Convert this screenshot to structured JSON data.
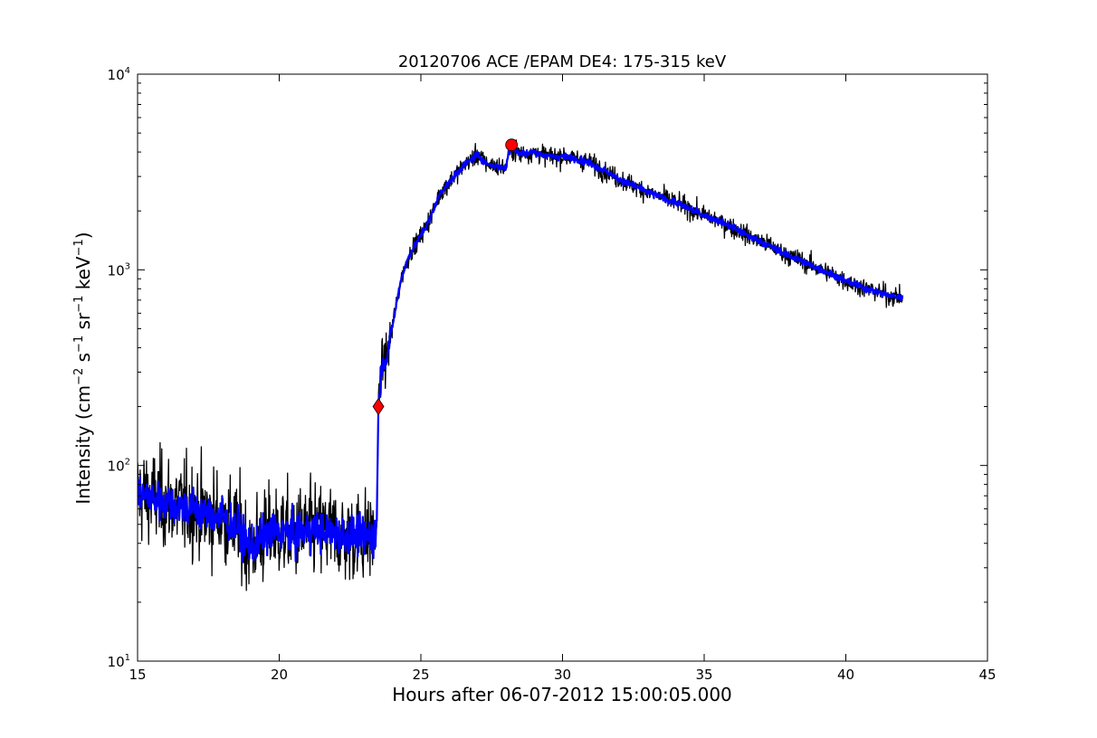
{
  "chart_data": {
    "type": "line",
    "title": "20120706 ACE /EPAM DE4: 175-315 keV",
    "xlabel": "Hours after 06-07-2012 15:00:05.000",
    "ylabel": {
      "prefix": "Intensity (cm",
      "sup1": "−2",
      "mid1": " s",
      "sup2": "−1",
      "mid2": " sr",
      "sup3": "−1",
      "mid3": " keV",
      "sup4": "−1",
      "suffix": ")"
    },
    "xlim": [
      15,
      45
    ],
    "ylim": [
      10,
      10000
    ],
    "yscale": "log",
    "grid": false,
    "x_ticks": [
      15,
      20,
      25,
      30,
      35,
      40,
      45
    ],
    "x_tick_labels": [
      "15",
      "20",
      "25",
      "30",
      "35",
      "40",
      "45"
    ],
    "y_ticks": [
      {
        "value": 10,
        "base": "10",
        "exp": "1"
      },
      {
        "value": 100,
        "base": "10",
        "exp": "2"
      },
      {
        "value": 1000,
        "base": "10",
        "exp": "3"
      },
      {
        "value": 10000,
        "base": "10",
        "exp": "4"
      }
    ],
    "series": [
      {
        "role": "raw",
        "color": "#000000",
        "x": [
          15.0,
          15.5,
          16.0,
          16.5,
          17.0,
          17.5,
          18.0,
          18.5,
          19.0,
          19.5,
          20.0,
          20.5,
          21.0,
          21.5,
          22.0,
          22.5,
          23.0,
          23.4,
          23.45,
          23.5,
          23.6,
          23.8,
          24.0,
          24.3,
          24.6,
          25.0,
          25.3,
          25.7,
          26.0,
          26.5,
          27.0,
          27.3,
          27.6,
          28.0,
          28.1,
          28.2,
          28.5,
          29.0,
          29.5,
          30.0,
          30.5,
          31.0,
          31.5,
          32.0,
          32.5,
          33.0,
          33.5,
          34.0,
          34.5,
          35.0,
          35.5,
          36.0,
          36.5,
          37.0,
          37.5,
          38.0,
          38.5,
          39.0,
          39.5,
          40.0,
          40.5,
          41.0,
          41.5,
          42.0
        ],
        "y": [
          72,
          68,
          66,
          62,
          60,
          56,
          54,
          48,
          38,
          44,
          46,
          44,
          47,
          46,
          45,
          44,
          43,
          44,
          60,
          200,
          310,
          360,
          520,
          900,
          1200,
          1500,
          1800,
          2500,
          2800,
          3400,
          3900,
          3500,
          3400,
          3300,
          4000,
          4200,
          3900,
          4000,
          3800,
          3800,
          3700,
          3500,
          3200,
          2900,
          2700,
          2500,
          2350,
          2200,
          2050,
          1900,
          1780,
          1650,
          1500,
          1400,
          1280,
          1180,
          1100,
          1020,
          950,
          880,
          820,
          780,
          740,
          720
        ]
      },
      {
        "role": "smoothed",
        "color": "#0000ff",
        "x": [
          15.0,
          15.5,
          16.0,
          16.5,
          17.0,
          17.5,
          18.0,
          18.5,
          19.0,
          19.5,
          20.0,
          20.5,
          21.0,
          21.5,
          22.0,
          22.5,
          23.0,
          23.4,
          23.45,
          23.5,
          23.6,
          23.8,
          24.0,
          24.3,
          24.6,
          25.0,
          25.3,
          25.7,
          26.0,
          26.5,
          27.0,
          27.3,
          27.6,
          28.0,
          28.1,
          28.2,
          28.5,
          29.0,
          29.5,
          30.0,
          30.5,
          31.0,
          31.5,
          32.0,
          32.5,
          33.0,
          33.5,
          34.0,
          34.5,
          35.0,
          35.5,
          36.0,
          36.5,
          37.0,
          37.5,
          38.0,
          38.5,
          39.0,
          39.5,
          40.0,
          40.5,
          41.0,
          41.5,
          42.0
        ],
        "y": [
          72,
          68,
          66,
          62,
          60,
          56,
          54,
          48,
          38,
          44,
          46,
          44,
          47,
          46,
          45,
          44,
          43,
          44,
          60,
          200,
          310,
          360,
          520,
          900,
          1200,
          1500,
          1800,
          2500,
          2800,
          3400,
          3900,
          3500,
          3400,
          3300,
          4000,
          4200,
          3900,
          4000,
          3800,
          3800,
          3700,
          3500,
          3200,
          2900,
          2700,
          2500,
          2350,
          2200,
          2050,
          1900,
          1780,
          1650,
          1500,
          1400,
          1280,
          1180,
          1100,
          1020,
          950,
          880,
          820,
          780,
          740,
          720
        ]
      }
    ],
    "markers": [
      {
        "shape": "diamond",
        "x": 23.5,
        "y": 200,
        "color": "#ff0000"
      },
      {
        "shape": "circle",
        "x": 28.2,
        "y": 4350,
        "color": "#ff0000"
      }
    ]
  }
}
